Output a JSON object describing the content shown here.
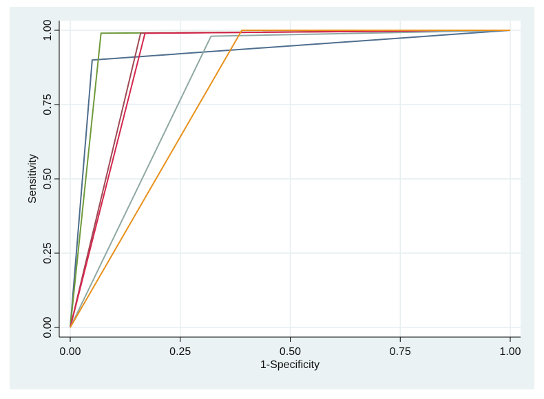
{
  "chart_data": {
    "type": "line",
    "title": "",
    "xlabel": "1-Specificity",
    "ylabel": "Sensitivity",
    "xlim": [
      0,
      1
    ],
    "ylim": [
      0,
      1
    ],
    "grid": true,
    "legend": "none",
    "x_ticks": [
      "0.00",
      "0.25",
      "0.50",
      "0.75",
      "1.00"
    ],
    "y_ticks": [
      "0.00",
      "0.25",
      "0.50",
      "0.75",
      "1.00"
    ],
    "colors": {
      "outer_background": "#eaf2f3",
      "plot_background": "#ffffff",
      "grid": "#e6eef0"
    },
    "series": [
      {
        "color": "#4e6e8e",
        "points": [
          [
            0,
            0
          ],
          [
            0.05,
            0.9
          ],
          [
            1,
            1
          ]
        ]
      },
      {
        "color": "#6f9a3c",
        "points": [
          [
            0,
            0
          ],
          [
            0.07,
            0.99
          ],
          [
            1,
            1
          ]
        ]
      },
      {
        "color": "#9e4a54",
        "points": [
          [
            0,
            0
          ],
          [
            0.16,
            0.99
          ],
          [
            1,
            1
          ]
        ]
      },
      {
        "color": "#d6264e",
        "points": [
          [
            0,
            0
          ],
          [
            0.17,
            0.99
          ],
          [
            1,
            1
          ]
        ]
      },
      {
        "color": "#8fa8a3",
        "points": [
          [
            0,
            0
          ],
          [
            0.32,
            0.98
          ],
          [
            1,
            1
          ]
        ]
      },
      {
        "color": "#e8901c",
        "points": [
          [
            0,
            0
          ],
          [
            0.39,
            1.0
          ],
          [
            1,
            1
          ]
        ]
      }
    ]
  }
}
